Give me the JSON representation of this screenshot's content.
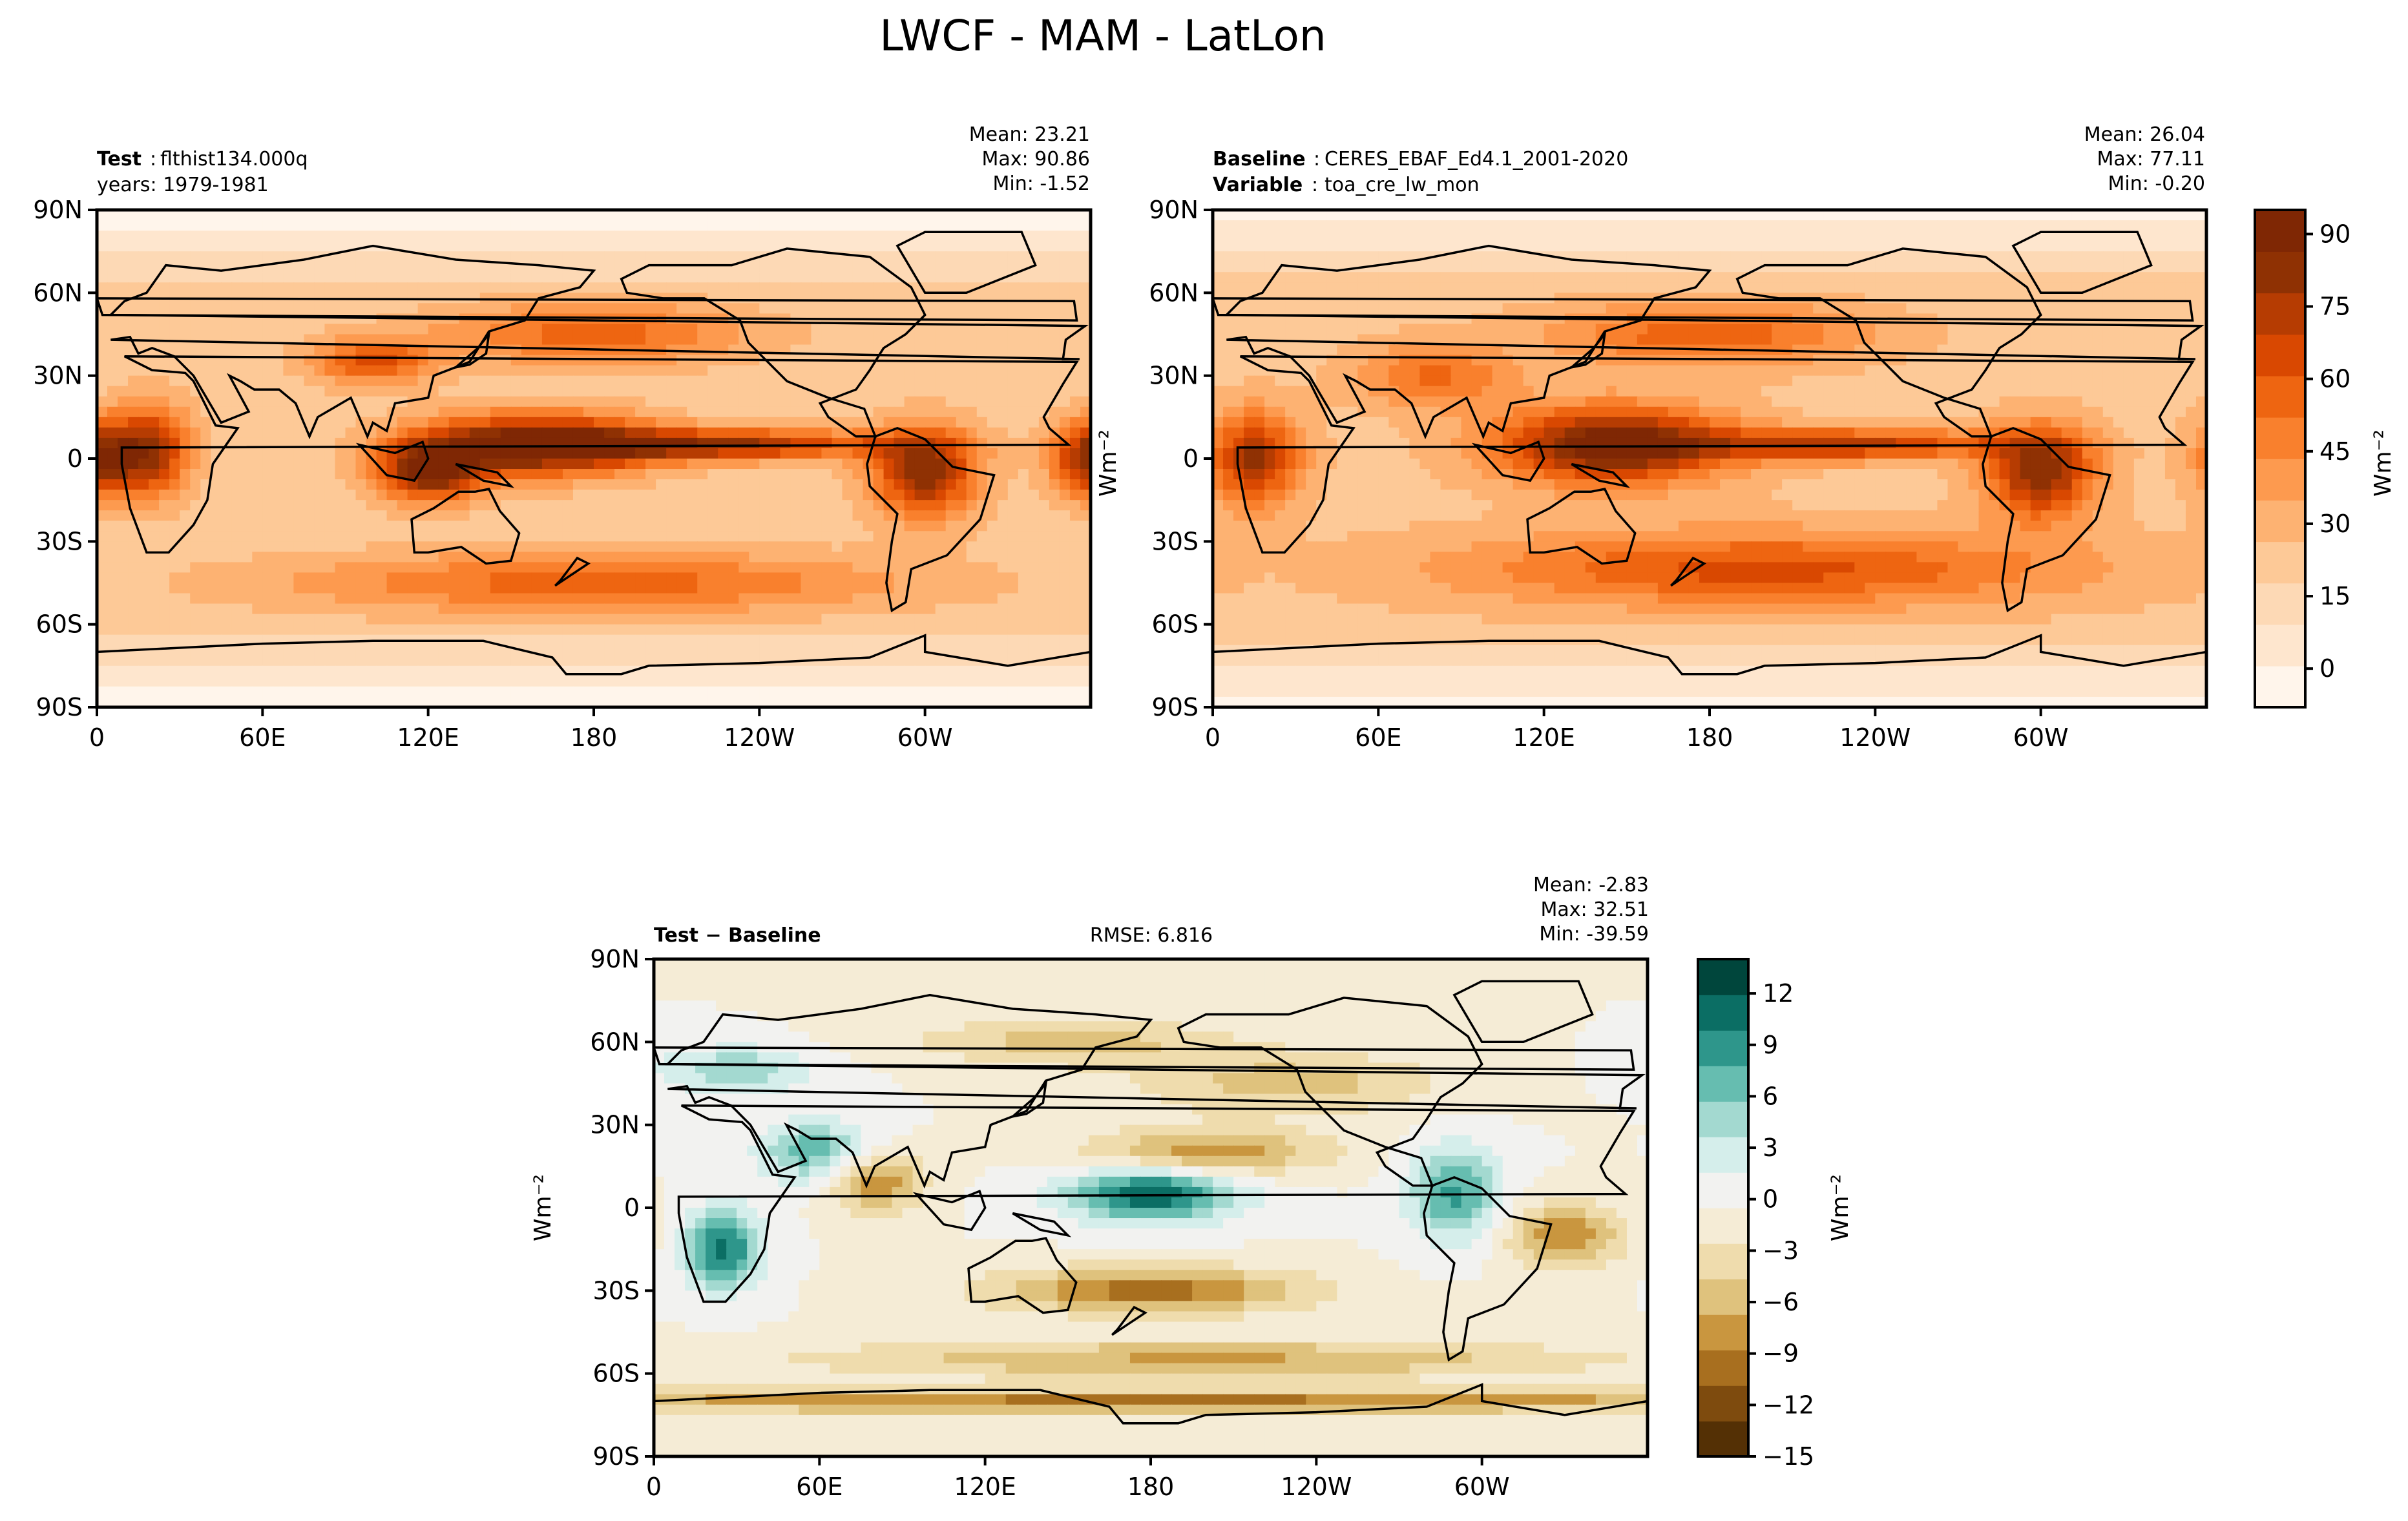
{
  "figure": {
    "title": "LWCF - MAM - LatLon"
  },
  "panels": [
    {
      "id": "test",
      "label_bold": "Test",
      "label_text": "flthist134.000q",
      "years": "years: 1979-1981",
      "stats": {
        "mean": "Mean: 23.21",
        "max": "Max: 90.86",
        "min": "Min: -1.52"
      },
      "ylabel": "",
      "fields": [
        {
          "lat": 0,
          "lon": 0,
          "amp": 0.6,
          "sx": 10,
          "sy": 10
        },
        {
          "lat": 3,
          "lon": 20,
          "amp": 0.55,
          "sx": 10,
          "sy": 12
        },
        {
          "lat": 5,
          "lon": 160,
          "amp": 0.75,
          "sx": 30,
          "sy": 8
        },
        {
          "lat": -5,
          "lon": 120,
          "amp": 0.6,
          "sx": 14,
          "sy": 8
        },
        {
          "lat": -5,
          "lon": 300,
          "amp": 0.6,
          "sx": 14,
          "sy": 12
        },
        {
          "lat": 35,
          "lon": 100,
          "amp": 0.4,
          "sx": 16,
          "sy": 6
        },
        {
          "lat": 45,
          "lon": 180,
          "amp": 0.35,
          "sx": 40,
          "sy": 8
        },
        {
          "lat": -45,
          "lon": 180,
          "amp": 0.35,
          "sx": 80,
          "sy": 8
        },
        {
          "lat": 5,
          "lon": 230,
          "amp": 0.55,
          "sx": 40,
          "sy": 4
        }
      ],
      "base": 0.28,
      "colormap": "oranges"
    },
    {
      "id": "baseline",
      "label_bold": "Baseline",
      "label_text": "CERES_EBAF_Ed4.1_2001-2020",
      "label_bold2": "Variable",
      "label_text2": "toa_cre_lw_mon",
      "stats": {
        "mean": "Mean: 26.04",
        "max": "Max: 77.11",
        "min": "Min: -0.20"
      },
      "ylabel": "Wm⁻²",
      "fields": [
        {
          "lat": 0,
          "lon": 15,
          "amp": 0.55,
          "sx": 12,
          "sy": 12
        },
        {
          "lat": 5,
          "lon": 145,
          "amp": 0.7,
          "sx": 30,
          "sy": 10
        },
        {
          "lat": -5,
          "lon": 300,
          "amp": 0.6,
          "sx": 14,
          "sy": 12
        },
        {
          "lat": 45,
          "lon": 180,
          "amp": 0.35,
          "sx": 40,
          "sy": 8
        },
        {
          "lat": -40,
          "lon": 200,
          "amp": 0.4,
          "sx": 80,
          "sy": 10
        },
        {
          "lat": 5,
          "lon": 230,
          "amp": 0.5,
          "sx": 40,
          "sy": 4
        },
        {
          "lat": 30,
          "lon": 80,
          "amp": 0.3,
          "sx": 20,
          "sy": 8
        }
      ],
      "base": 0.3,
      "colormap": "oranges"
    },
    {
      "id": "diff",
      "label_bold": "Test − Baseline",
      "rmse": "RMSE: 6.816",
      "stats": {
        "mean": "Mean: -2.83",
        "max": "Max: 32.51",
        "min": "Min: -39.59"
      },
      "ylabel": "Wm⁻²",
      "fields": [
        {
          "lat": 5,
          "lon": 180,
          "amp": 0.85,
          "sx": 22,
          "sy": 7
        },
        {
          "lat": -15,
          "lon": 25,
          "amp": 0.75,
          "sx": 10,
          "sy": 10
        },
        {
          "lat": 20,
          "lon": 60,
          "amp": 0.55,
          "sx": 15,
          "sy": 8
        },
        {
          "lat": 5,
          "lon": 290,
          "amp": 0.6,
          "sx": 12,
          "sy": 12
        },
        {
          "lat": -30,
          "lon": 180,
          "amp": -0.65,
          "sx": 40,
          "sy": 6
        },
        {
          "lat": 10,
          "lon": 80,
          "amp": -0.6,
          "sx": 12,
          "sy": 8
        },
        {
          "lat": 20,
          "lon": 200,
          "amp": -0.55,
          "sx": 30,
          "sy": 6
        },
        {
          "lat": -55,
          "lon": 200,
          "amp": -0.45,
          "sx": 100,
          "sy": 5
        },
        {
          "lat": -70,
          "lon": 180,
          "amp": -0.6,
          "sx": 200,
          "sy": 3
        },
        {
          "lat": 45,
          "lon": 230,
          "amp": -0.35,
          "sx": 40,
          "sy": 8
        },
        {
          "lat": 60,
          "lon": 150,
          "amp": -0.35,
          "sx": 40,
          "sy": 6
        },
        {
          "lat": 50,
          "lon": 30,
          "amp": 0.4,
          "sx": 20,
          "sy": 6
        },
        {
          "lat": -10,
          "lon": 330,
          "amp": -0.55,
          "sx": 15,
          "sy": 8
        }
      ],
      "base": 0.0,
      "colormap": "brbg"
    }
  ],
  "axes": {
    "lat_ticks": [
      "90N",
      "60N",
      "30N",
      "0",
      "30S",
      "60S",
      "90S"
    ],
    "lon_ticks": [
      "0",
      "60E",
      "120E",
      "180",
      "120W",
      "60W"
    ]
  },
  "colorbars": [
    {
      "id": "cbar-oranges",
      "label": "Wm⁻²",
      "ticks": [
        "90",
        "75",
        "60",
        "45",
        "30",
        "15",
        "0"
      ],
      "colors": [
        "#fff5eb",
        "#fee6ce",
        "#fdd9b5",
        "#fdc997",
        "#fdb272",
        "#fd9a4f",
        "#f9802d",
        "#ee6511",
        "#d94801",
        "#b63c02",
        "#8f3103",
        "#7f2704"
      ]
    },
    {
      "id": "cbar-brbg",
      "label": "Wm⁻²",
      "ticks": [
        "12",
        "9",
        "6",
        "3",
        "0",
        "−3",
        "−6",
        "−9",
        "−12",
        "−15"
      ],
      "colors": [
        "#543005",
        "#7e4b0e",
        "#a86f1f",
        "#c9963f",
        "#dfc27d",
        "#efdcad",
        "#f5ecd6",
        "#f2f2f0",
        "#d5eeeb",
        "#a3d9d0",
        "#66bdb0",
        "#2e968b",
        "#0b6e64",
        "#00463c"
      ]
    }
  ],
  "chart_data": [
    {
      "type": "heatmap",
      "title": "LWCF - MAM - LatLon",
      "subtitle": "Test : flthist134.000q, years: 1979-1981",
      "mean": 23.21,
      "max": 90.86,
      "min": -1.52,
      "colorbar_ticks": [
        90,
        75,
        60,
        45,
        30,
        15,
        0
      ],
      "colorbar_label": "Wm⁻²",
      "xlabel": "",
      "ylabel": ""
    },
    {
      "type": "heatmap",
      "subtitle": "Baseline : CERES_EBAF_Ed4.1_2001-2020, Variable : toa_cre_lw_mon",
      "mean": 26.04,
      "max": 77.11,
      "min": -0.2,
      "ylabel": "Wm⁻²"
    },
    {
      "type": "heatmap",
      "subtitle": "Test − Baseline",
      "rmse": 6.816,
      "mean": -2.83,
      "max": 32.51,
      "min": -39.59,
      "colorbar_ticks": [
        12,
        9,
        6,
        3,
        0,
        -3,
        -6,
        -9,
        -12,
        -15
      ],
      "colorbar_label": "Wm⁻²",
      "ylabel": "Wm⁻²"
    }
  ]
}
